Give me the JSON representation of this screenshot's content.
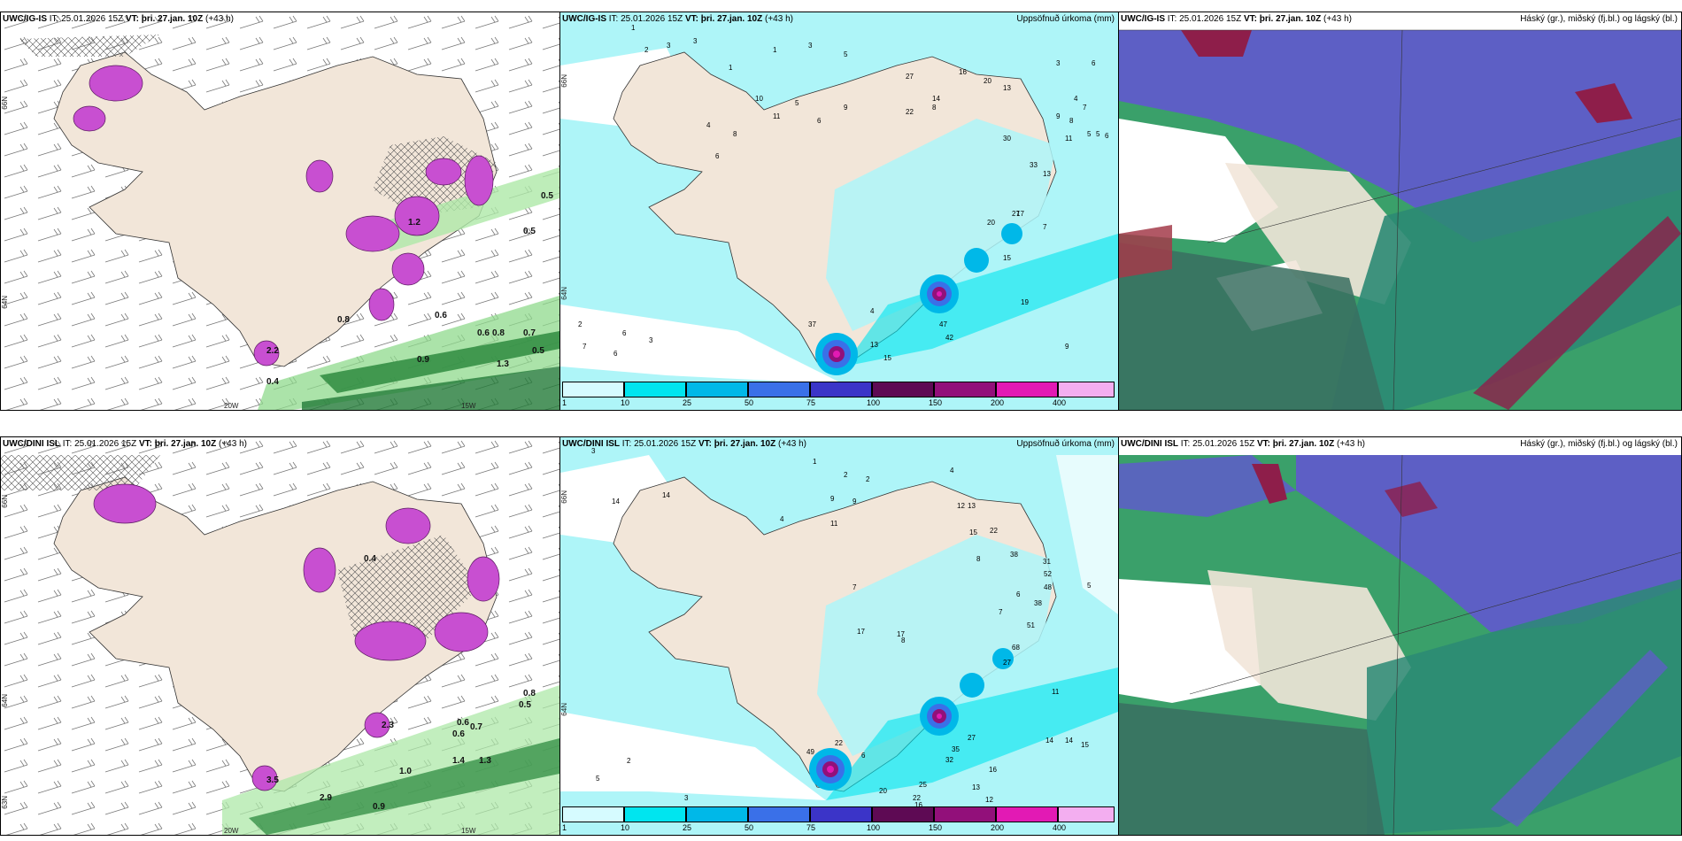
{
  "panels": [
    {
      "title_model": "UWC/IG-IS",
      "title_it": "IT: 25.01.2026 15Z",
      "title_vt_label": "VT:",
      "title_vt": "þri. 27.jan. 10Z",
      "title_lead": "(+43 h)",
      "right_label": ""
    },
    {
      "title_model": "UWC/IG-IS",
      "title_it": "IT: 25.01.2026 15Z",
      "title_vt_label": "VT:",
      "title_vt": "þri. 27.jan. 10Z",
      "title_lead": "(+43 h)",
      "right_label": "Uppsöfnuð úrkoma (mm)"
    },
    {
      "title_model": "UWC/IG-IS",
      "title_it": "IT: 25.01.2026 15Z",
      "title_vt_label": "VT:",
      "title_vt": "þri. 27.jan. 10Z",
      "title_lead": "(+43 h)",
      "right_label": "Háský (gr.), miðský (fj.bl.) og lágský (bl.)"
    },
    {
      "title_model": "UWC/DINI ISL",
      "title_it": "IT: 25.01.2026 15Z",
      "title_vt_label": "VT:",
      "title_vt": "þri. 27.jan. 10Z",
      "title_lead": "(+43 h)",
      "right_label": ""
    },
    {
      "title_model": "UWC/DINI ISL",
      "title_it": "IT: 25.01.2026 15Z",
      "title_vt_label": "VT:",
      "title_vt": "þri. 27.jan. 10Z",
      "title_lead": "(+43 h)",
      "right_label": "Uppsöfnuð úrkoma (mm)"
    },
    {
      "title_model": "UWC/DINI ISL",
      "title_it": "IT: 25.01.2026 15Z",
      "title_vt_label": "VT:",
      "title_vt": "þri. 27.jan. 10Z",
      "title_lead": "(+43 h)",
      "right_label": "Háský (gr.), miðský (fj.bl.) og lágský (bl.)"
    }
  ],
  "axis_ticks": {
    "lat_66": "66N",
    "lat_64": "64N",
    "lat_63": "63N",
    "lon_20": "20W",
    "lon_15": "15W",
    "lat_right_66": "66N",
    "lat_right_64": "64N"
  },
  "colorbar": {
    "labels": [
      "1",
      "10",
      "25",
      "50",
      "75",
      "100",
      "150",
      "200",
      "400"
    ],
    "colors": [
      "#d6fbff",
      "#00e5ef",
      "#00b8e8",
      "#3a70e8",
      "#3b34c8",
      "#5e0a54",
      "#92107a",
      "#e21ab4",
      "#f3aef0"
    ]
  },
  "precip_values_top": [
    "1",
    "2",
    "3",
    "3",
    "1",
    "1",
    "3",
    "5",
    "16",
    "20",
    "13",
    "27",
    "17",
    "4",
    "6",
    "8",
    "10",
    "11",
    "5",
    "6",
    "9",
    "22",
    "8",
    "30",
    "33",
    "27",
    "13",
    "20",
    "15",
    "19",
    "47",
    "42",
    "13",
    "15",
    "37",
    "4",
    "2",
    "6",
    "7",
    "6",
    "3",
    "9",
    "14",
    "4",
    "11",
    "7",
    "3",
    "7",
    "5",
    "9",
    "8",
    "5",
    "6",
    "6"
  ],
  "precip_values_bottom": [
    "3",
    "1",
    "2",
    "2",
    "4",
    "14",
    "17",
    "8",
    "9",
    "11",
    "7",
    "12",
    "13",
    "15",
    "22",
    "38",
    "31",
    "52",
    "48",
    "38",
    "51",
    "68",
    "27",
    "11",
    "14",
    "14",
    "15",
    "16",
    "13",
    "12",
    "16",
    "25",
    "22",
    "20",
    "35",
    "32",
    "27",
    "49",
    "22",
    "6",
    "2",
    "5",
    "3",
    "14",
    "9",
    "4",
    "8",
    "7",
    "6",
    "5",
    "17"
  ],
  "wind_values_top": [
    "0.5",
    "0.6",
    "0.8",
    "0.5",
    "1.3",
    "2.2",
    "0.4",
    "0.6",
    "0.9",
    "0.7",
    "0.5",
    "1.2",
    "0.8"
  ],
  "wind_values_bottom": [
    "0.8",
    "0.5",
    "0.7",
    "0.6",
    "1.0",
    "1.3",
    "0.9",
    "1.4",
    "2.9",
    "3.5",
    "0.4",
    "2.3",
    "0.6"
  ],
  "colors": {
    "land": "#f2e6d9",
    "ocean": "#ffffff",
    "sea_precip": "#aef5f8",
    "cloud_high": "#5d5fc5",
    "cloud_mid": "#2c8a74",
    "cloud_low": "#3aa06a",
    "cloud_red": "#8e1e4a",
    "precip_magenta": "#c84fd1",
    "precip_green": "#2e8b40"
  }
}
